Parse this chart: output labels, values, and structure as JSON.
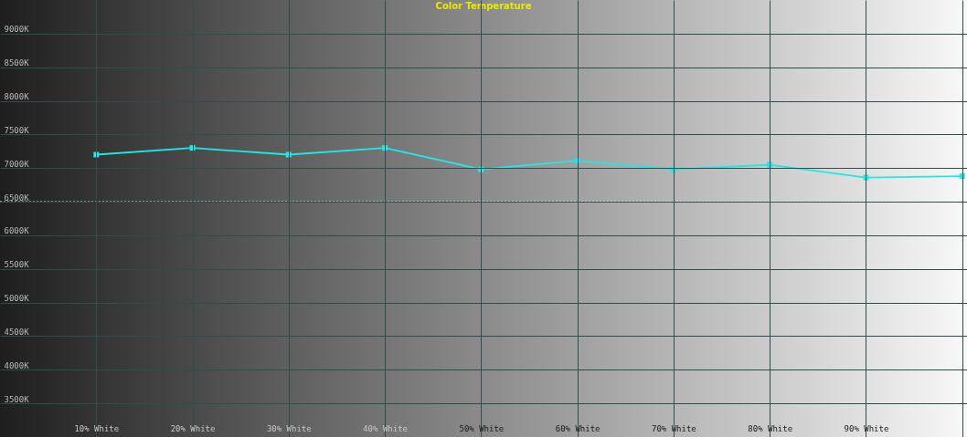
{
  "chart_data": {
    "type": "line",
    "title": "Color Temperature",
    "x": [
      10,
      20,
      30,
      40,
      50,
      60,
      70,
      80,
      90,
      100
    ],
    "series": [
      {
        "color": "#1ee8e8",
        "values": [
          7200,
          7300,
          7200,
          7300,
          6980,
          7110,
          6980,
          7050,
          6860,
          6880
        ]
      }
    ],
    "xlim": [
      0,
      100.5
    ],
    "xticks": [
      {
        "value": 10,
        "label": "10% White"
      },
      {
        "value": 20,
        "label": "20% White"
      },
      {
        "value": 30,
        "label": "30% White"
      },
      {
        "value": 40,
        "label": "40% White"
      },
      {
        "value": 50,
        "label": "50% White"
      },
      {
        "value": 60,
        "label": "60% White"
      },
      {
        "value": 70,
        "label": "70% White"
      },
      {
        "value": 80,
        "label": "80% White"
      },
      {
        "value": 90,
        "label": "90% White"
      },
      {
        "value": 100,
        "label": null
      }
    ],
    "ylim": [
      3000,
      9500
    ],
    "yticks": [
      {
        "value": 3500,
        "label": "3500K"
      },
      {
        "value": 4000,
        "label": "4000K"
      },
      {
        "value": 4500,
        "label": "4500K"
      },
      {
        "value": 5000,
        "label": "5000K"
      },
      {
        "value": 5500,
        "label": "5500K"
      },
      {
        "value": 6000,
        "label": "6000K"
      },
      {
        "value": 6500,
        "label": "6500K"
      },
      {
        "value": 7000,
        "label": "7000K"
      },
      {
        "value": 7500,
        "label": "7500K"
      },
      {
        "value": 8000,
        "label": "8000K"
      },
      {
        "value": 8500,
        "label": "8500K"
      },
      {
        "value": 9000,
        "label": "9000K"
      }
    ],
    "ref_lines": [
      {
        "axis": "y",
        "value": 6500,
        "color": "#ffffff",
        "line_style": "dotted"
      }
    ],
    "grid": true,
    "marker": "square",
    "line_style": "solid"
  }
}
